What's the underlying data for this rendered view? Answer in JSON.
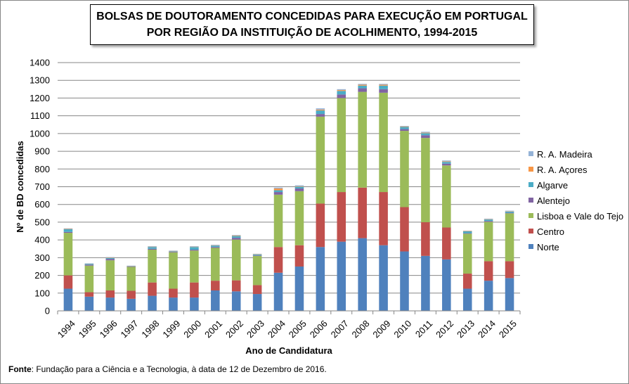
{
  "colors": {
    "Norte": "#4f81bd",
    "Centro": "#c0504d",
    "Lisboa e Vale do Tejo": "#9bbb59",
    "Alentejo": "#8064a2",
    "Algarve": "#4bacc6",
    "R. A. Açores": "#f79646",
    "R. A. Madeira": "#95b3d7"
  },
  "chart_data": {
    "type": "bar",
    "stacked": true,
    "title_line1": "BOLSAS DE DOUTORAMENTO CONCEDIDAS PARA EXECUÇÃO EM PORTUGAL",
    "title_line2": "POR REGIÃO DA INSTITUIÇÃO DE ACOLHIMENTO, 1994-2015",
    "xlabel": "Ano de Candidatura",
    "ylabel": "Nº de BD concedidas",
    "ylim": [
      0,
      1400
    ],
    "yticks": [
      0,
      100,
      200,
      300,
      400,
      500,
      600,
      700,
      800,
      900,
      1000,
      1100,
      1200,
      1300,
      1400
    ],
    "grid": true,
    "legend_position": "right",
    "categories": [
      "1994",
      "1995",
      "1996",
      "1997",
      "1998",
      "1999",
      "2000",
      "2001",
      "2002",
      "2003",
      "2004",
      "2005",
      "2006",
      "2007",
      "2008",
      "2009",
      "2010",
      "2011",
      "2012",
      "2013",
      "2014",
      "2015"
    ],
    "series": [
      {
        "name": "Norte",
        "values": [
          125,
          80,
          75,
          68,
          85,
          75,
          75,
          115,
          110,
          95,
          215,
          250,
          360,
          390,
          410,
          370,
          335,
          310,
          290,
          125,
          170,
          185
        ]
      },
      {
        "name": "Centro",
        "values": [
          75,
          25,
          40,
          45,
          75,
          50,
          85,
          55,
          62,
          50,
          145,
          120,
          245,
          280,
          285,
          300,
          250,
          190,
          180,
          85,
          110,
          95
        ]
      },
      {
        "name": "Lisboa e Vale do Tejo",
        "values": [
          240,
          150,
          170,
          135,
          185,
          205,
          180,
          185,
          230,
          165,
          295,
          305,
          490,
          530,
          540,
          560,
          430,
          475,
          350,
          225,
          222,
          270
        ]
      },
      {
        "name": "Alentejo",
        "values": [
          5,
          5,
          8,
          3,
          5,
          3,
          5,
          5,
          10,
          3,
          15,
          15,
          15,
          20,
          20,
          20,
          10,
          15,
          10,
          3,
          5,
          3
        ]
      },
      {
        "name": "Algarve",
        "values": [
          15,
          5,
          5,
          2,
          10,
          3,
          15,
          8,
          10,
          5,
          10,
          10,
          20,
          20,
          15,
          20,
          12,
          12,
          10,
          10,
          8,
          7
        ]
      },
      {
        "name": "R. A. Açores",
        "values": [
          2,
          1,
          2,
          1,
          2,
          2,
          2,
          2,
          3,
          2,
          10,
          3,
          5,
          5,
          5,
          5,
          3,
          3,
          3,
          2,
          2,
          2
        ]
      },
      {
        "name": "R. A. Madeira",
        "values": [
          3,
          2,
          3,
          1,
          3,
          2,
          3,
          3,
          3,
          2,
          5,
          5,
          7,
          5,
          5,
          5,
          3,
          5,
          5,
          2,
          3,
          3
        ]
      }
    ],
    "legend_order": [
      "R. A. Madeira",
      "R. A. Açores",
      "Algarve",
      "Alentejo",
      "Lisboa e Vale do Tejo",
      "Centro",
      "Norte"
    ]
  },
  "source": {
    "label": "Fonte",
    "text": ": Fundação para a Ciência e a Tecnologia, à data de 12 de Dezembro de 2016."
  }
}
